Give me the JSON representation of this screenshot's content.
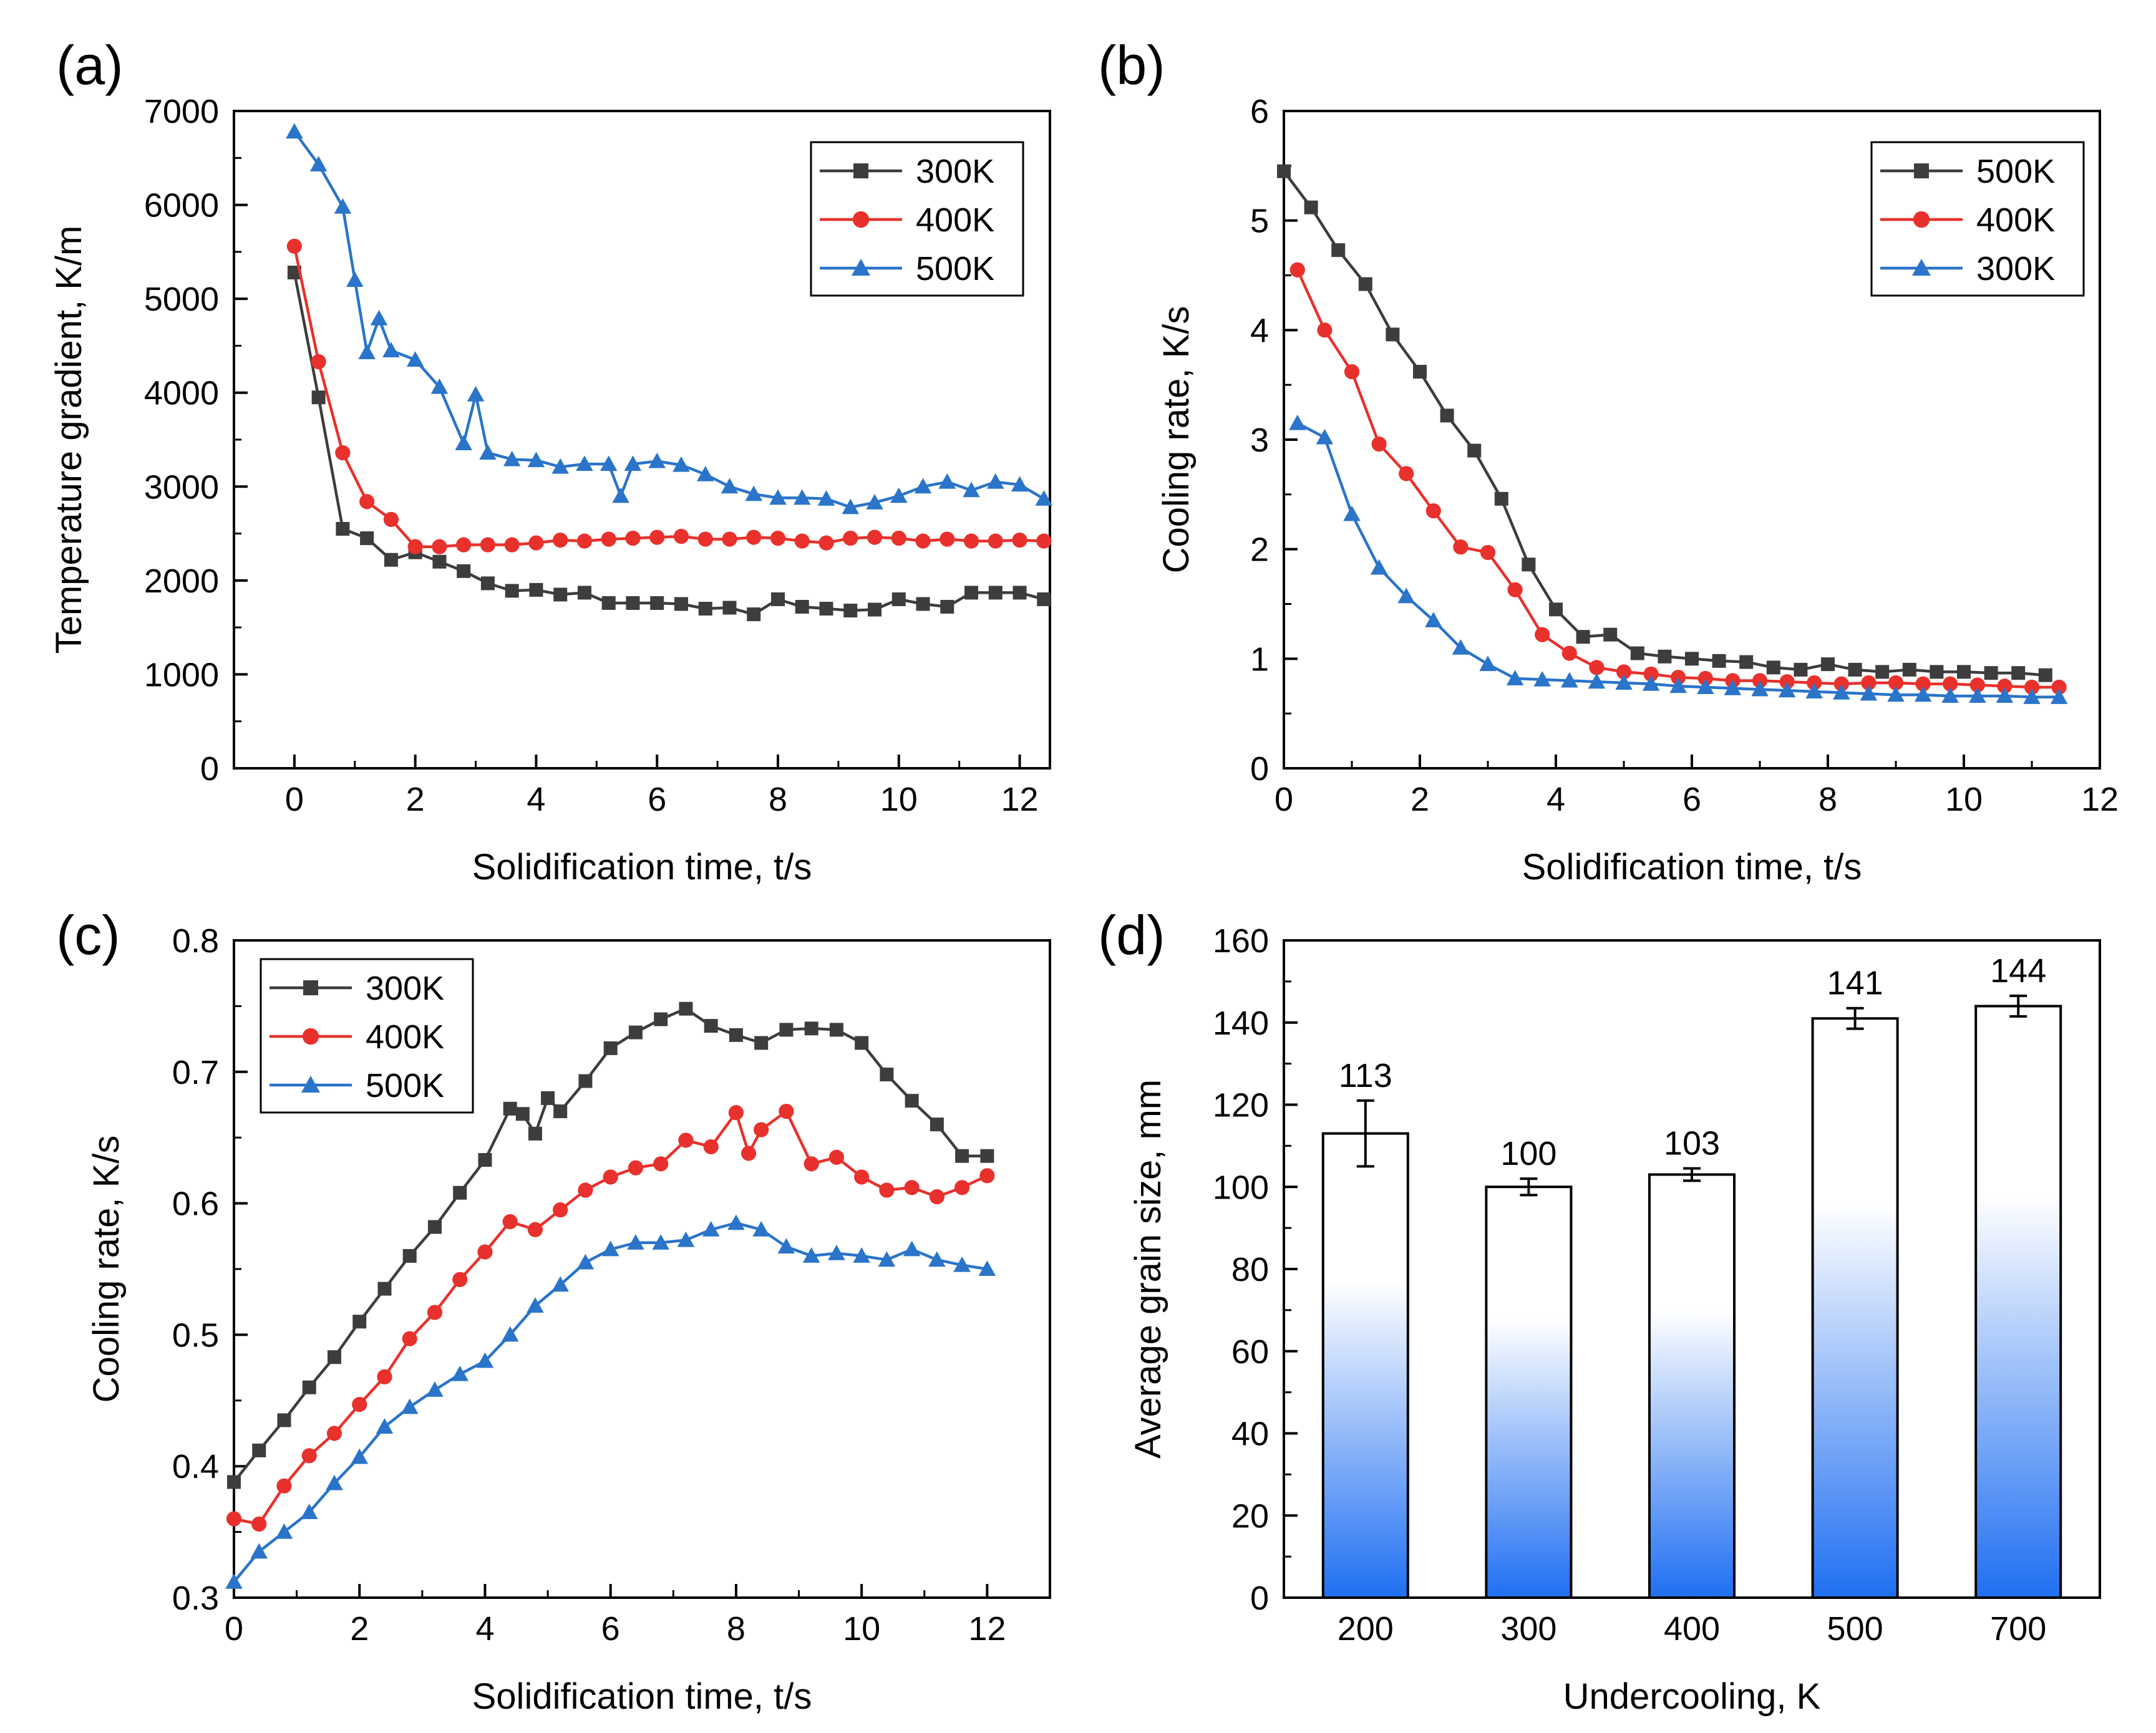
{
  "colors": {
    "black": "#3d3d3d",
    "red": "#e8312c",
    "blue": "#2a74c9",
    "bar_top": "#ffffff",
    "bar_bottom": "#1f6ff2"
  },
  "chart_data": [
    {
      "id": "a",
      "panel_label": "(a)",
      "type": "line",
      "xlabel": "Solidification time, t/s",
      "ylabel": "Temperature gradient, K/m",
      "xlim": [
        -1,
        12.5
      ],
      "ylim": [
        0,
        7000
      ],
      "xticks": [
        0,
        2,
        4,
        6,
        8,
        10,
        12
      ],
      "yticks": [
        0,
        1000,
        2000,
        3000,
        4000,
        5000,
        6000,
        7000
      ],
      "legend_position": "top-right",
      "series": [
        {
          "name": "300K",
          "marker": "square",
          "color": "#3d3d3d",
          "x": [
            0,
            0.4,
            0.8,
            1.2,
            1.6,
            2.0,
            2.4,
            2.8,
            3.2,
            3.6,
            4.0,
            4.4,
            4.8,
            5.2,
            5.6,
            6.0,
            6.4,
            6.8,
            7.2,
            7.6,
            8.0,
            8.4,
            8.8,
            9.2,
            9.6,
            10.0,
            10.4,
            10.8,
            11.2,
            11.6,
            12.0,
            12.4
          ],
          "y": [
            5280,
            3950,
            2550,
            2450,
            2220,
            2300,
            2200,
            2100,
            1970,
            1890,
            1900,
            1850,
            1870,
            1760,
            1760,
            1760,
            1750,
            1700,
            1710,
            1640,
            1800,
            1720,
            1700,
            1680,
            1690,
            1800,
            1750,
            1720,
            1870,
            1870,
            1870,
            1800
          ]
        },
        {
          "name": "400K",
          "marker": "circle",
          "color": "#e8312c",
          "x": [
            0,
            0.4,
            0.8,
            1.2,
            1.6,
            2.0,
            2.4,
            2.8,
            3.2,
            3.6,
            4.0,
            4.4,
            4.8,
            5.2,
            5.6,
            6.0,
            6.4,
            6.8,
            7.2,
            7.6,
            8.0,
            8.4,
            8.8,
            9.2,
            9.6,
            10.0,
            10.4,
            10.8,
            11.2,
            11.6,
            12.0,
            12.4
          ],
          "y": [
            5560,
            4330,
            3360,
            2840,
            2650,
            2360,
            2360,
            2380,
            2380,
            2380,
            2400,
            2430,
            2420,
            2440,
            2450,
            2460,
            2470,
            2440,
            2440,
            2460,
            2450,
            2420,
            2400,
            2450,
            2460,
            2450,
            2420,
            2440,
            2420,
            2420,
            2430,
            2420
          ]
        },
        {
          "name": "500K",
          "marker": "triangle",
          "color": "#2a74c9",
          "x": [
            0,
            0.4,
            0.8,
            1.0,
            1.2,
            1.4,
            1.6,
            2.0,
            2.4,
            2.8,
            3.0,
            3.2,
            3.6,
            4.0,
            4.4,
            4.8,
            5.2,
            5.4,
            5.6,
            6.0,
            6.4,
            6.8,
            7.2,
            7.6,
            8.0,
            8.4,
            8.8,
            9.2,
            9.6,
            10.0,
            10.4,
            10.8,
            11.2,
            11.6,
            12.0,
            12.4
          ],
          "y": [
            6780,
            6430,
            5980,
            5200,
            4430,
            4790,
            4450,
            4350,
            4060,
            3460,
            3980,
            3360,
            3290,
            3280,
            3210,
            3240,
            3240,
            2900,
            3240,
            3270,
            3230,
            3130,
            3000,
            2920,
            2880,
            2880,
            2870,
            2780,
            2830,
            2900,
            3000,
            3050,
            2960,
            3050,
            3020,
            2870
          ]
        }
      ]
    },
    {
      "id": "b",
      "panel_label": "(b)",
      "type": "line",
      "xlabel": "Solidification time, t/s",
      "ylabel": "Cooling rate, K/s",
      "xlim": [
        0,
        12
      ],
      "ylim": [
        0,
        6
      ],
      "xticks": [
        0,
        2,
        4,
        6,
        8,
        10,
        12
      ],
      "yticks": [
        0,
        1,
        2,
        3,
        4,
        5,
        6
      ],
      "legend_position": "top-right",
      "series": [
        {
          "name": "500K",
          "marker": "square",
          "color": "#3d3d3d",
          "x": [
            0,
            0.4,
            0.8,
            1.2,
            1.6,
            2.0,
            2.4,
            2.8,
            3.2,
            3.6,
            4.0,
            4.4,
            4.8,
            5.2,
            5.6,
            6.0,
            6.4,
            6.8,
            7.2,
            7.6,
            8.0,
            8.4,
            8.8,
            9.2,
            9.6,
            10.0,
            10.4,
            10.8,
            11.2
          ],
          "y": [
            5.45,
            5.12,
            4.73,
            4.42,
            3.96,
            3.62,
            3.22,
            2.9,
            2.46,
            1.86,
            1.45,
            1.2,
            1.22,
            1.05,
            1.02,
            1.0,
            0.98,
            0.97,
            0.92,
            0.9,
            0.95,
            0.9,
            0.88,
            0.9,
            0.88,
            0.88,
            0.87,
            0.87,
            0.85
          ]
        },
        {
          "name": "400K",
          "marker": "circle",
          "color": "#e8312c",
          "x": [
            0.2,
            0.6,
            1.0,
            1.4,
            1.8,
            2.2,
            2.6,
            3.0,
            3.4,
            3.8,
            4.2,
            4.6,
            5.0,
            5.4,
            5.8,
            6.2,
            6.6,
            7.0,
            7.4,
            7.8,
            8.2,
            8.6,
            9.0,
            9.4,
            9.8,
            10.2,
            10.6,
            11.0,
            11.4
          ],
          "y": [
            4.55,
            4.0,
            3.62,
            2.96,
            2.69,
            2.35,
            2.02,
            1.97,
            1.63,
            1.22,
            1.05,
            0.92,
            0.88,
            0.86,
            0.83,
            0.82,
            0.8,
            0.8,
            0.79,
            0.78,
            0.77,
            0.78,
            0.78,
            0.77,
            0.77,
            0.76,
            0.75,
            0.74,
            0.74
          ]
        },
        {
          "name": "300K",
          "marker": "triangle",
          "color": "#2a74c9",
          "x": [
            0.2,
            0.6,
            1.0,
            1.4,
            1.8,
            2.2,
            2.6,
            3.0,
            3.4,
            3.8,
            4.2,
            4.6,
            5.0,
            5.4,
            5.8,
            6.2,
            6.6,
            7.0,
            7.4,
            7.8,
            8.2,
            8.6,
            9.0,
            9.4,
            9.8,
            10.2,
            10.6,
            11.0,
            11.4
          ],
          "y": [
            3.15,
            3.02,
            2.32,
            1.83,
            1.57,
            1.35,
            1.1,
            0.95,
            0.82,
            0.81,
            0.8,
            0.79,
            0.78,
            0.77,
            0.75,
            0.74,
            0.73,
            0.72,
            0.71,
            0.7,
            0.69,
            0.68,
            0.67,
            0.67,
            0.66,
            0.66,
            0.66,
            0.65,
            0.65
          ]
        }
      ]
    },
    {
      "id": "c",
      "panel_label": "(c)",
      "type": "line",
      "xlabel": "Solidification time, t/s",
      "ylabel": "Cooling rate, K/s",
      "xlim": [
        0,
        13
      ],
      "ylim": [
        0.3,
        0.8
      ],
      "xticks": [
        0,
        2,
        4,
        6,
        8,
        10,
        12
      ],
      "yticks": [
        0.3,
        0.4,
        0.5,
        0.6,
        0.7,
        0.8
      ],
      "legend_position": "top-left",
      "series": [
        {
          "name": "300K",
          "marker": "square",
          "color": "#3d3d3d",
          "x": [
            0,
            0.4,
            0.8,
            1.2,
            1.6,
            2.0,
            2.4,
            2.8,
            3.2,
            3.6,
            4.0,
            4.4,
            4.6,
            4.8,
            5.0,
            5.2,
            5.6,
            6.0,
            6.4,
            6.8,
            7.2,
            7.6,
            8.0,
            8.4,
            8.8,
            9.2,
            9.6,
            10.0,
            10.4,
            10.8,
            11.2,
            11.6,
            12.0
          ],
          "y": [
            0.388,
            0.412,
            0.435,
            0.46,
            0.483,
            0.51,
            0.535,
            0.56,
            0.582,
            0.608,
            0.633,
            0.672,
            0.668,
            0.653,
            0.68,
            0.67,
            0.693,
            0.718,
            0.73,
            0.74,
            0.748,
            0.735,
            0.728,
            0.722,
            0.732,
            0.733,
            0.732,
            0.722,
            0.698,
            0.678,
            0.66,
            0.636,
            0.636
          ]
        },
        {
          "name": "400K",
          "marker": "circle",
          "color": "#e8312c",
          "x": [
            0,
            0.4,
            0.8,
            1.2,
            1.6,
            2.0,
            2.4,
            2.8,
            3.2,
            3.6,
            4.0,
            4.4,
            4.8,
            5.2,
            5.6,
            6.0,
            6.4,
            6.8,
            7.2,
            7.6,
            8.0,
            8.2,
            8.4,
            8.8,
            9.2,
            9.6,
            10.0,
            10.4,
            10.8,
            11.2,
            11.6,
            12.0
          ],
          "y": [
            0.36,
            0.356,
            0.385,
            0.408,
            0.425,
            0.447,
            0.468,
            0.497,
            0.517,
            0.542,
            0.563,
            0.586,
            0.58,
            0.595,
            0.61,
            0.62,
            0.627,
            0.63,
            0.648,
            0.643,
            0.669,
            0.638,
            0.656,
            0.67,
            0.63,
            0.635,
            0.62,
            0.61,
            0.612,
            0.605,
            0.612,
            0.621
          ]
        },
        {
          "name": "500K",
          "marker": "triangle",
          "color": "#2a74c9",
          "x": [
            0,
            0.4,
            0.8,
            1.2,
            1.6,
            2.0,
            2.4,
            2.8,
            3.2,
            3.6,
            4.0,
            4.4,
            4.8,
            5.2,
            5.6,
            6.0,
            6.4,
            6.8,
            7.2,
            7.6,
            8.0,
            8.4,
            8.8,
            9.2,
            9.6,
            10.0,
            10.4,
            10.8,
            11.2,
            11.6,
            12.0
          ],
          "y": [
            0.312,
            0.335,
            0.35,
            0.365,
            0.387,
            0.407,
            0.43,
            0.445,
            0.458,
            0.47,
            0.48,
            0.5,
            0.522,
            0.538,
            0.555,
            0.565,
            0.57,
            0.57,
            0.572,
            0.58,
            0.585,
            0.58,
            0.567,
            0.56,
            0.562,
            0.56,
            0.557,
            0.565,
            0.557,
            0.553,
            0.55
          ]
        }
      ]
    },
    {
      "id": "d",
      "panel_label": "(d)",
      "type": "bar",
      "xlabel": "Undercooling, K",
      "ylabel": "Average grain size, mm",
      "ylim": [
        0,
        160
      ],
      "yticks": [
        0,
        20,
        40,
        60,
        80,
        100,
        120,
        140,
        160
      ],
      "categories": [
        "200",
        "300",
        "400",
        "500",
        "700"
      ],
      "values": [
        113,
        100,
        103,
        141,
        144
      ],
      "value_labels": [
        "113",
        "100",
        "103",
        "141",
        "144"
      ],
      "errors": [
        8,
        2,
        1.5,
        2.5,
        2.5
      ]
    }
  ]
}
